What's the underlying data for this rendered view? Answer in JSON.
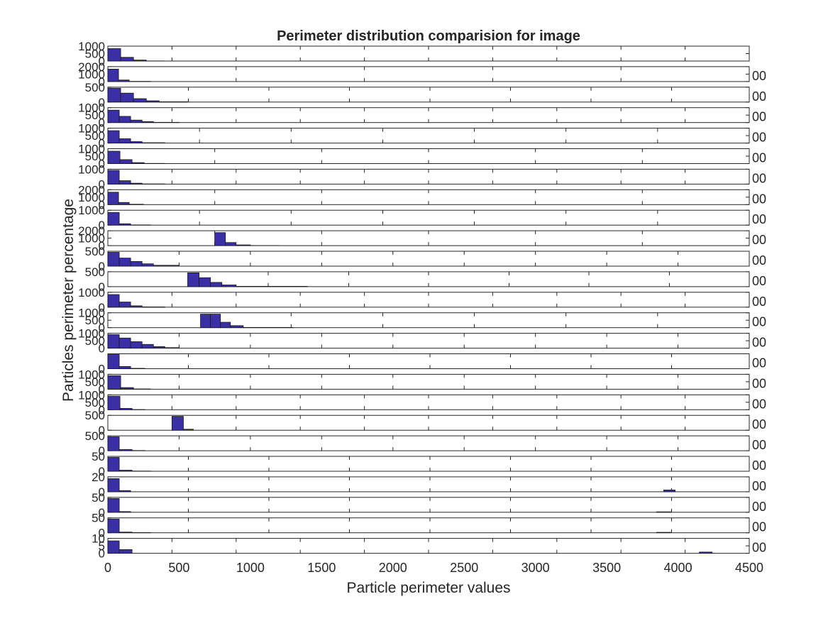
{
  "chart_data": {
    "type": "bar",
    "title": "Perimeter distribution comparision for image",
    "xlabel": "Particle perimeter values",
    "ylabel": "Particles perimeter percentage",
    "xlim": [
      0,
      4500
    ],
    "xticks": [
      0,
      500,
      1000,
      1500,
      2000,
      2500,
      3000,
      3500,
      4000,
      4500
    ],
    "bar_color": "#3b2fa6",
    "right_tick_label": "00",
    "panels": [
      {
        "ylabels": [
          "1000",
          "500",
          "0"
        ],
        "ymax": 1200,
        "bins": [
          [
            0,
            90,
            1000
          ],
          [
            90,
            180,
            300
          ],
          [
            180,
            270,
            80
          ],
          [
            270,
            400,
            10
          ]
        ],
        "ticks": [
          450,
          900,
          1350,
          1800,
          2250,
          2700,
          3150,
          3600,
          4050,
          4500
        ]
      },
      {
        "ylabels": [
          "2000",
          "1000",
          "0"
        ],
        "ymax": 2400,
        "bins": [
          [
            0,
            75,
            2000
          ],
          [
            75,
            150,
            250
          ],
          [
            150,
            300,
            30
          ]
        ],
        "ticks": [
          900,
          1800,
          2700,
          3600
        ]
      },
      {
        "ylabels": [
          "500",
          "0"
        ],
        "ymax": 700,
        "bins": [
          [
            0,
            90,
            650
          ],
          [
            90,
            180,
            420
          ],
          [
            180,
            270,
            160
          ],
          [
            270,
            360,
            60
          ],
          [
            360,
            560,
            15
          ]
        ],
        "ticks": [
          565,
          1130,
          1695,
          2260,
          2825,
          3390,
          3955
        ]
      },
      {
        "ylabels": [
          "1000",
          "500",
          "0"
        ],
        "ymax": 1200,
        "bins": [
          [
            0,
            80,
            1000
          ],
          [
            80,
            160,
            500
          ],
          [
            160,
            240,
            200
          ],
          [
            240,
            320,
            80
          ],
          [
            320,
            500,
            20
          ]
        ],
        "ticks": [
          450,
          900,
          1350,
          1800,
          2250,
          2700,
          3150,
          3600,
          4050
        ]
      },
      {
        "ylabels": [
          "1000",
          "500",
          "0"
        ],
        "ymax": 1200,
        "bins": [
          [
            0,
            80,
            1000
          ],
          [
            80,
            160,
            350
          ],
          [
            160,
            240,
            120
          ],
          [
            240,
            400,
            30
          ]
        ],
        "ticks": [
          643,
          1286,
          1929,
          2571,
          3214,
          3857
        ]
      },
      {
        "ylabels": [
          "1000",
          "500",
          "0"
        ],
        "ymax": 1200,
        "bins": [
          [
            0,
            85,
            1000
          ],
          [
            85,
            170,
            320
          ],
          [
            170,
            255,
            80
          ],
          [
            255,
            400,
            15
          ]
        ],
        "ticks": [
          750,
          1500,
          2250,
          3000,
          3750
        ]
      },
      {
        "ylabels": [
          "1000",
          "0"
        ],
        "ymax": 1300,
        "bins": [
          [
            0,
            80,
            1200
          ],
          [
            80,
            160,
            300
          ],
          [
            160,
            240,
            80
          ],
          [
            240,
            400,
            15
          ]
        ],
        "ticks": [
          450,
          900,
          1350,
          1800,
          2250,
          2700,
          3150,
          3600,
          4050
        ]
      },
      {
        "ylabels": [
          "2000",
          "1000",
          "0"
        ],
        "ymax": 2400,
        "bins": [
          [
            0,
            75,
            2000
          ],
          [
            75,
            150,
            350
          ],
          [
            150,
            250,
            60
          ]
        ],
        "ticks": [
          750,
          1500,
          2250,
          3000,
          3750
        ]
      },
      {
        "ylabels": [
          "1000",
          "0"
        ],
        "ymax": 1300,
        "bins": [
          [
            0,
            80,
            1100
          ],
          [
            80,
            160,
            120
          ],
          [
            160,
            300,
            20
          ]
        ],
        "ticks": [
          643,
          1286,
          1929,
          2571,
          3214,
          3857
        ]
      },
      {
        "ylabels": [
          "2000",
          "1000",
          "0"
        ],
        "ymax": 2400,
        "bins": [
          [
            750,
            825,
            2100
          ],
          [
            825,
            900,
            500
          ],
          [
            900,
            1000,
            120
          ],
          [
            1000,
            1200,
            20
          ]
        ],
        "ticks": [
          750,
          1500,
          2250,
          3000,
          3750
        ]
      },
      {
        "ylabels": [
          "500",
          "0"
        ],
        "ymax": 700,
        "bins": [
          [
            0,
            80,
            650
          ],
          [
            80,
            160,
            380
          ],
          [
            160,
            240,
            220
          ],
          [
            240,
            320,
            110
          ],
          [
            320,
            500,
            40
          ]
        ],
        "ticks": [
          500,
          1000,
          1500,
          2000,
          2500,
          3000,
          3500,
          4000
        ]
      },
      {
        "ylabels": [
          "500",
          "0"
        ],
        "ymax": 700,
        "bins": [
          [
            560,
            640,
            650
          ],
          [
            640,
            720,
            420
          ],
          [
            720,
            800,
            200
          ],
          [
            800,
            900,
            80
          ],
          [
            900,
            1400,
            15
          ]
        ],
        "ticks": [
          1125,
          1690,
          2250,
          2815,
          3375,
          3940
        ]
      },
      {
        "ylabels": [
          "1000",
          "0"
        ],
        "ymax": 1300,
        "bins": [
          [
            0,
            80,
            1100
          ],
          [
            80,
            160,
            450
          ],
          [
            160,
            240,
            120
          ],
          [
            240,
            400,
            25
          ]
        ],
        "ticks": [
          450,
          900,
          1350,
          1800,
          2250,
          2700,
          3150,
          3600,
          4050
        ]
      },
      {
        "ylabels": [
          "1000",
          "500",
          "0"
        ],
        "ymax": 1100,
        "bins": [
          [
            650,
            720,
            1000
          ],
          [
            720,
            790,
            1000
          ],
          [
            790,
            860,
            400
          ],
          [
            860,
            950,
            150
          ],
          [
            950,
            1300,
            20
          ]
        ],
        "ticks": [
          1286,
          1929,
          2571,
          3214,
          3857
        ]
      },
      {
        "ylabels": [
          "1000",
          "500",
          "0"
        ],
        "ymax": 1100,
        "bins": [
          [
            0,
            80,
            1000
          ],
          [
            80,
            160,
            750
          ],
          [
            160,
            240,
            480
          ],
          [
            240,
            320,
            280
          ],
          [
            320,
            400,
            120
          ],
          [
            400,
            500,
            40
          ]
        ],
        "ticks": [
          500,
          1000,
          1500,
          2000,
          2500,
          3000,
          3500,
          4000
        ]
      },
      {
        "ylabels": [
          "0"
        ],
        "ymax": 1000,
        "bins": [
          [
            0,
            80,
            950
          ],
          [
            80,
            160,
            150
          ],
          [
            160,
            260,
            25
          ]
        ],
        "ticks": [
          565,
          1130,
          1695,
          2260,
          2825,
          3390,
          3955
        ]
      },
      {
        "ylabels": [
          "1000",
          "500",
          "0"
        ],
        "ymax": 1100,
        "bins": [
          [
            0,
            90,
            1000
          ],
          [
            90,
            180,
            120
          ],
          [
            180,
            300,
            20
          ]
        ],
        "ticks": [
          500,
          1000,
          1500,
          2000,
          2500,
          3000,
          3500,
          4000
        ]
      },
      {
        "ylabels": [
          "1000",
          "500",
          "0"
        ],
        "ymax": 1100,
        "bins": [
          [
            0,
            85,
            1000
          ],
          [
            85,
            170,
            100
          ],
          [
            170,
            260,
            15
          ]
        ],
        "ticks": [
          450,
          900,
          1350,
          1800,
          2250,
          2700,
          3150,
          3600,
          4050
        ]
      },
      {
        "ylabels": [
          "500",
          "0"
        ],
        "ymax": 600,
        "bins": [
          [
            450,
            530,
            560
          ],
          [
            530,
            600,
            40
          ]
        ],
        "ticks": [
          900,
          1350,
          1800,
          2250,
          2700,
          3150,
          3600,
          4050
        ]
      },
      {
        "ylabels": [
          "500",
          "0"
        ],
        "ymax": 600,
        "bins": [
          [
            0,
            80,
            560
          ],
          [
            80,
            170,
            50
          ],
          [
            170,
            260,
            10
          ]
        ],
        "ticks": [
          500,
          1000,
          1500,
          2000,
          2500,
          3000,
          3500,
          4000
        ]
      },
      {
        "ylabels": [
          "50",
          "0"
        ],
        "ymax": 70,
        "bins": [
          [
            0,
            80,
            65
          ],
          [
            80,
            170,
            5
          ],
          [
            170,
            300,
            1
          ]
        ],
        "ticks": [
          565,
          1130,
          1695,
          2260,
          2825,
          3390,
          3955
        ]
      },
      {
        "ylabels": [
          "20",
          "0"
        ],
        "ymax": 25,
        "bins": [
          [
            0,
            80,
            22
          ],
          [
            80,
            160,
            2
          ],
          [
            3900,
            3980,
            3
          ]
        ],
        "ticks": [
          565,
          1130,
          1695,
          2260,
          2825,
          3390,
          3955
        ]
      },
      {
        "ylabels": [
          "50",
          "0"
        ],
        "ymax": 65,
        "bins": [
          [
            0,
            80,
            60
          ],
          [
            80,
            160,
            3
          ],
          [
            3850,
            3950,
            2
          ]
        ],
        "ticks": [
          565,
          1130,
          1695,
          2260,
          2825,
          3390,
          3955
        ]
      },
      {
        "ylabels": [
          "50",
          "0"
        ],
        "ymax": 65,
        "bins": [
          [
            0,
            80,
            60
          ],
          [
            80,
            170,
            3
          ],
          [
            170,
            300,
            1
          ],
          [
            3850,
            3950,
            2
          ]
        ],
        "ticks": [
          565,
          1130,
          1695,
          2260,
          2825,
          3390,
          3955
        ]
      },
      {
        "ylabels": [
          "10",
          "5",
          "0"
        ],
        "ymax": 12,
        "bins": [
          [
            0,
            80,
            10
          ],
          [
            80,
            170,
            3
          ],
          [
            4150,
            4240,
            1
          ]
        ],
        "ticks": [
          450,
          900,
          1350,
          1800,
          2250,
          2700,
          3150,
          3600,
          4050
        ]
      }
    ]
  }
}
